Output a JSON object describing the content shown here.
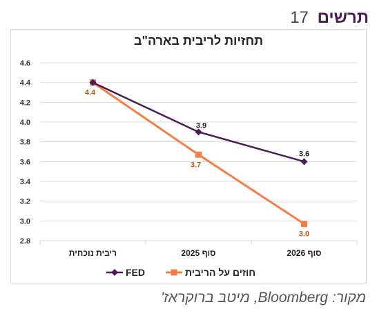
{
  "figure": {
    "label": "תרשים",
    "number": "17"
  },
  "source_note": "מקור: Bloomberg, מיטב ברוקראז'",
  "chart_data": {
    "type": "line",
    "title": "תחזיות לריבית בארה\"ב",
    "categories": [
      "ריבית נוכחית",
      "סוף 2025",
      "סוף 2026"
    ],
    "series": [
      {
        "name": "FED",
        "values": [
          4.4,
          3.9,
          3.6
        ],
        "labels": [
          "",
          "3.9",
          "3.6"
        ],
        "color": "#4b1b58",
        "marker": "diamond"
      },
      {
        "name": "חוזים על הריבית",
        "values": [
          4.4,
          3.67,
          2.97
        ],
        "labels": [
          "4.4",
          "3.7",
          "3.0"
        ],
        "color": "#f57c45",
        "marker": "square"
      }
    ],
    "ylim": [
      2.8,
      4.6
    ],
    "yticks": [
      "2.8",
      "3.0",
      "3.2",
      "3.4",
      "3.6",
      "3.8",
      "4.0",
      "4.2",
      "4.4",
      "4.6"
    ],
    "grid": true,
    "legend": "bottom"
  }
}
